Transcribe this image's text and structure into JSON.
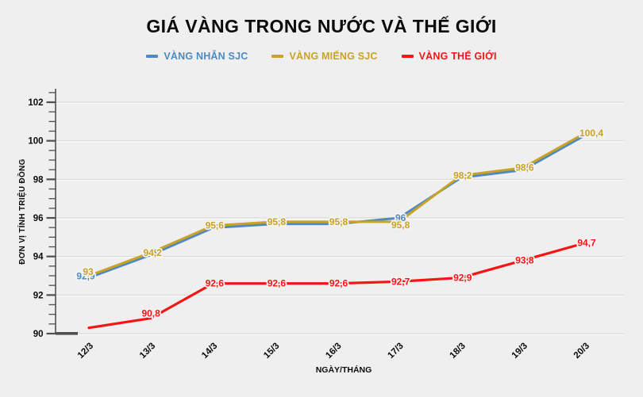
{
  "page": {
    "background": "#efefef"
  },
  "chart_data": {
    "type": "line",
    "title": "GIÁ VÀNG TRONG NƯỚC VÀ THẾ GIỚI",
    "xlabel": "NGÀY/THÁNG",
    "ylabel": "ĐƠN VỊ TÍNH TRIỆU ĐỒNG",
    "categories": [
      "12/3",
      "13/3",
      "14/3",
      "15/3",
      "16/3",
      "17/3",
      "18/3",
      "19/3",
      "20/3"
    ],
    "ylim": [
      90,
      102.8
    ],
    "yticks_major": [
      90,
      92,
      94,
      96,
      98,
      100,
      102
    ],
    "ytick_minor_step": 0.5,
    "grid": "horizontal-major",
    "legend_position": "top",
    "decimal_style": "comma",
    "colors": {
      "background": "#efefef",
      "gridline": "#d8d8d8",
      "gridline_highlight": "#ffffff",
      "axis": "#4f4f4f",
      "text": "#0b0b0b"
    },
    "series": [
      {
        "name": "VÀNG NHẪN SJC",
        "color": "#4e8ac2",
        "values": [
          92.9,
          94.2,
          95.6,
          95.8,
          95.8,
          96.0,
          98.2,
          98.6,
          100.4
        ],
        "labels": [
          "92,9",
          null,
          null,
          null,
          null,
          "96",
          null,
          null,
          null
        ]
      },
      {
        "name": "VÀNG MIẾNG SJC",
        "color": "#c9a227",
        "values": [
          93.0,
          94.2,
          95.6,
          95.8,
          95.8,
          95.8,
          98.2,
          98.6,
          100.4
        ],
        "labels": [
          "93",
          "94,2",
          "95,6",
          "95,8",
          "95,8",
          "95,8",
          "98,2",
          "98,6",
          "100,4"
        ]
      },
      {
        "name": "VÀNG THẾ GIỚI",
        "color": "#f51515",
        "values": [
          90.3,
          90.8,
          92.6,
          92.6,
          92.6,
          92.7,
          92.9,
          93.8,
          94.7
        ],
        "labels": [
          null,
          "90,8",
          "92,6",
          "92,6",
          "92,6",
          "92,7",
          "92,9",
          "93,8",
          "94,7"
        ]
      }
    ]
  }
}
